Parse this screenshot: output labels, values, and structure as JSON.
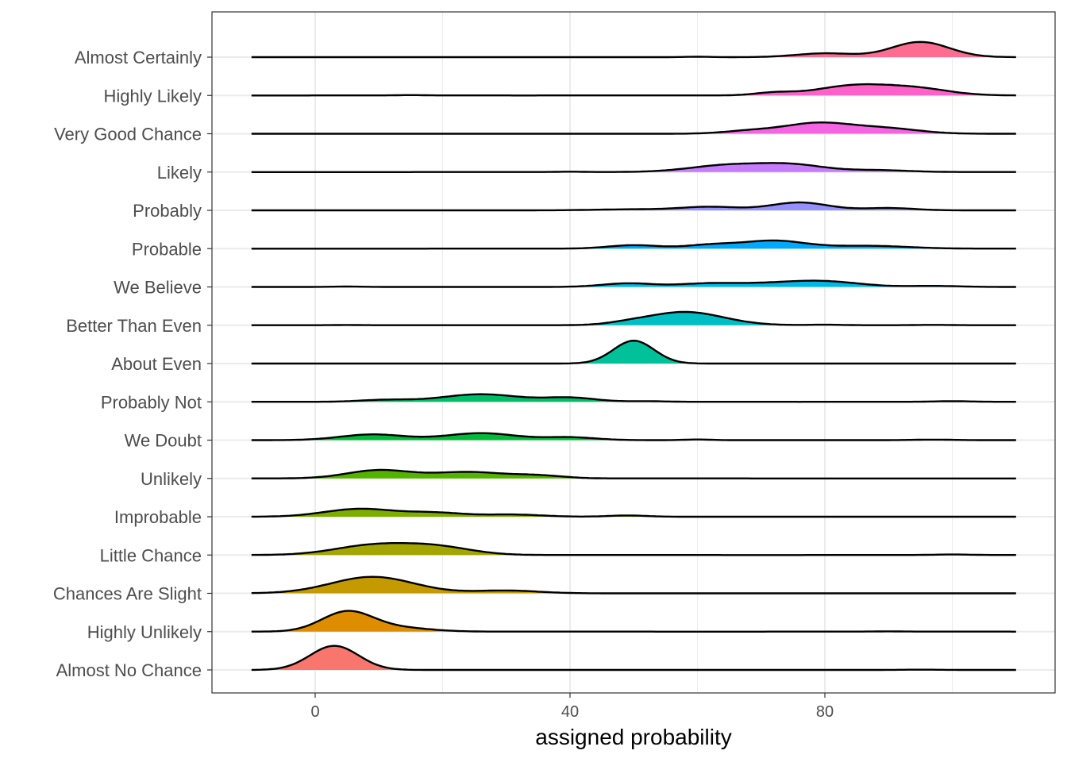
{
  "chart_data": {
    "type": "ridgeline",
    "title": "",
    "xlabel": "assigned probability",
    "ylabel": "",
    "xlim": [
      -20,
      116
    ],
    "x_ticks": [
      0,
      40,
      80
    ],
    "x_tick_labels": [
      "0",
      "40",
      "80"
    ],
    "grid": true,
    "legend": "none",
    "x_range": [
      -10,
      110
    ],
    "categories": [
      "Almost Certainly",
      "Highly Likely",
      "Very Good Chance",
      "Likely",
      "Probably",
      "Probable",
      "We Believe",
      "Better Than Even",
      "About Even",
      "Probably Not",
      "We Doubt",
      "Unlikely",
      "Improbable",
      "Little Chance",
      "Chances Are Slight",
      "Highly Unlikely",
      "Almost No Chance"
    ],
    "series": [
      {
        "category": "Almost Certainly",
        "color": "#FF6C91",
        "peaks": [
          [
            60,
            2,
            0.03
          ],
          [
            80,
            4.5,
            0.3
          ],
          [
            95,
            4.5,
            1.2
          ]
        ]
      },
      {
        "category": "Highly Likely",
        "color": "#FF61C9",
        "peaks": [
          [
            15,
            2,
            0.03
          ],
          [
            72,
            3,
            0.2
          ],
          [
            85,
            6,
            0.8
          ],
          [
            95,
            5,
            0.45
          ]
        ]
      },
      {
        "category": "Very Good Chance",
        "color": "#F564E3",
        "peaks": [
          [
            68,
            4,
            0.2
          ],
          [
            79,
            5.5,
            0.85
          ],
          [
            90,
            5,
            0.38
          ]
        ]
      },
      {
        "category": "Likely",
        "color": "#C77CFF",
        "peaks": [
          [
            40,
            2,
            0.03
          ],
          [
            65,
            6,
            0.55
          ],
          [
            75,
            5,
            0.52
          ],
          [
            88,
            5,
            0.15
          ]
        ]
      },
      {
        "category": "Probably",
        "color": "#9590FF",
        "peaks": [
          [
            50,
            6,
            0.08
          ],
          [
            62,
            4.5,
            0.27
          ],
          [
            76,
            4.5,
            0.62
          ],
          [
            90,
            4,
            0.18
          ]
        ]
      },
      {
        "category": "Probable",
        "color": "#00A9FF",
        "peaks": [
          [
            50,
            4,
            0.27
          ],
          [
            62,
            4,
            0.28
          ],
          [
            72,
            5,
            0.62
          ],
          [
            87,
            6,
            0.22
          ]
        ]
      },
      {
        "category": "We Believe",
        "color": "#00B8E7",
        "peaks": [
          [
            5,
            2.5,
            0.03
          ],
          [
            49,
            4,
            0.28
          ],
          [
            62,
            5,
            0.28
          ],
          [
            72,
            5,
            0.2
          ],
          [
            80,
            5.5,
            0.42
          ],
          [
            97,
            4,
            0.08
          ]
        ]
      },
      {
        "category": "Better Than Even",
        "color": "#00BFC4",
        "peaks": [
          [
            5,
            2.5,
            0.02
          ],
          [
            49,
            3,
            0.1
          ],
          [
            58,
            6,
            1.05
          ],
          [
            80,
            3,
            0.04
          ],
          [
            97,
            3,
            0.03
          ]
        ]
      },
      {
        "category": "About Even",
        "color": "#00C19A",
        "peaks": [
          [
            50,
            3.2,
            1.8
          ]
        ]
      },
      {
        "category": "Probably Not",
        "color": "#00BE67",
        "peaks": [
          [
            11,
            4,
            0.15
          ],
          [
            26,
            6,
            0.6
          ],
          [
            40,
            4,
            0.32
          ],
          [
            52,
            3,
            0.05
          ],
          [
            100,
            3,
            0.05
          ]
        ]
      },
      {
        "category": "We Doubt",
        "color": "#00BA38",
        "peaks": [
          [
            9,
            5,
            0.45
          ],
          [
            26,
            5.5,
            0.55
          ],
          [
            40,
            4,
            0.22
          ],
          [
            60,
            2,
            0.05
          ],
          [
            97,
            3,
            0.04
          ]
        ]
      },
      {
        "category": "Unlikely",
        "color": "#53B400",
        "peaks": [
          [
            10,
            5,
            0.65
          ],
          [
            24,
            5.5,
            0.5
          ],
          [
            35,
            4,
            0.22
          ]
        ]
      },
      {
        "category": "Improbable",
        "color": "#7CAE00",
        "peaks": [
          [
            7,
            5.5,
            0.62
          ],
          [
            19,
            4.5,
            0.3
          ],
          [
            31,
            4.5,
            0.17
          ],
          [
            49,
            3,
            0.1
          ]
        ]
      },
      {
        "category": "Little Chance",
        "color": "#A3A500",
        "peaks": [
          [
            9,
            6,
            0.75
          ],
          [
            19,
            5.5,
            0.62
          ],
          [
            100,
            3,
            0.04
          ]
        ]
      },
      {
        "category": "Chances Are Slight",
        "color": "#C49A00",
        "peaks": [
          [
            9,
            6.5,
            1.3
          ],
          [
            30,
            5,
            0.22
          ]
        ]
      },
      {
        "category": "Highly Unlikely",
        "color": "#DE8C00",
        "peaks": [
          [
            5,
            4,
            1.55
          ],
          [
            13,
            5,
            0.3
          ],
          [
            90,
            2.5,
            0.02
          ]
        ]
      },
      {
        "category": "Almost No Chance",
        "color": "#F8766D",
        "peaks": [
          [
            3,
            3.8,
            1.9
          ],
          [
            95,
            3,
            0.02
          ]
        ]
      }
    ]
  }
}
